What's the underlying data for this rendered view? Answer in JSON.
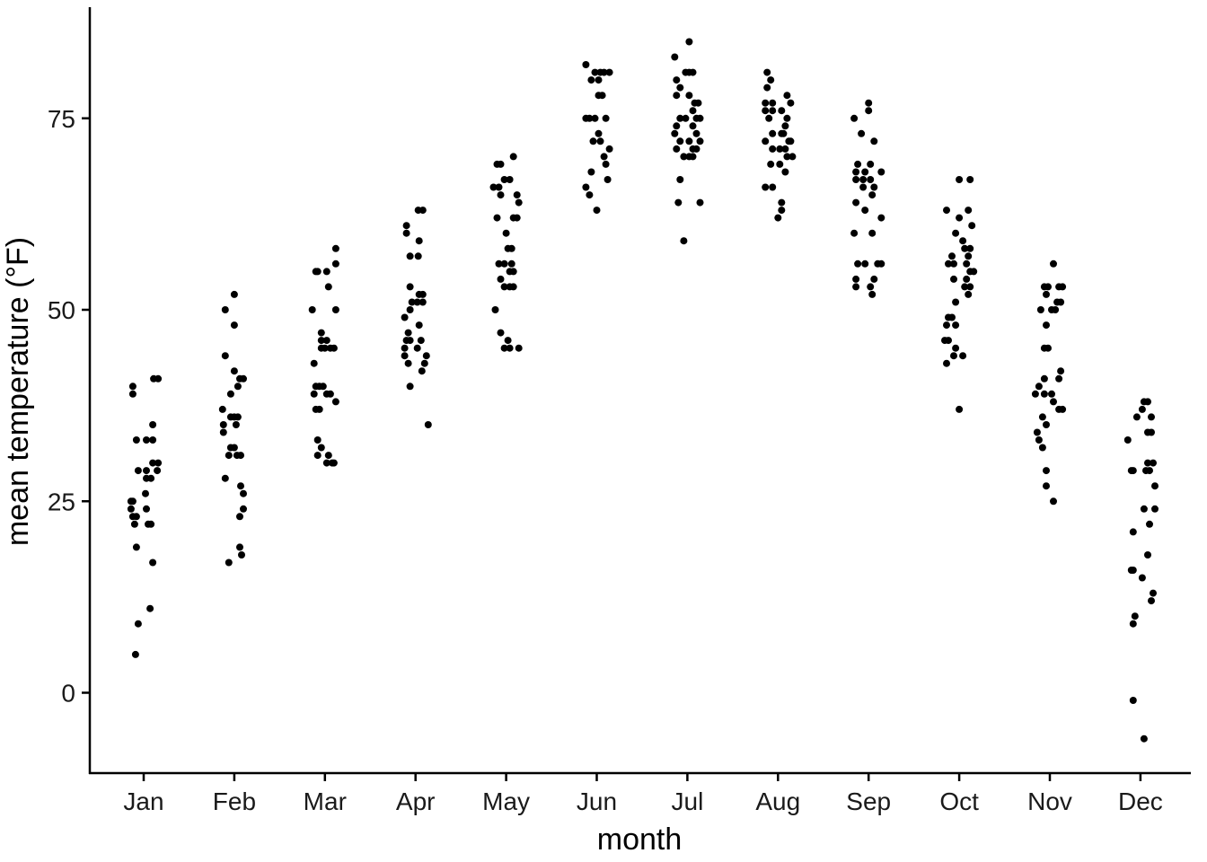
{
  "chart_data": {
    "type": "scatter",
    "title": "",
    "xlabel": "month",
    "ylabel": "mean temperature (°F)",
    "ylim": [
      -10,
      89
    ],
    "yticks": [
      0,
      25,
      50,
      75
    ],
    "categories": [
      "Jan",
      "Feb",
      "Mar",
      "Apr",
      "May",
      "Jun",
      "Jul",
      "Aug",
      "Sep",
      "Oct",
      "Nov",
      "Dec"
    ],
    "grid": false,
    "legend": "none",
    "point_color": "#000000",
    "points": {
      "Jan": [
        [
          -0.12,
          40
        ],
        [
          -0.12,
          39
        ],
        [
          0.11,
          41
        ],
        [
          0.16,
          41
        ],
        [
          -0.08,
          33
        ],
        [
          0.03,
          33
        ],
        [
          0.1,
          33
        ],
        [
          -0.06,
          29
        ],
        [
          0.03,
          29
        ],
        [
          0.15,
          29
        ],
        [
          0.1,
          30
        ],
        [
          0.16,
          30
        ],
        [
          0.03,
          28
        ],
        [
          0.08,
          28
        ],
        [
          0.1,
          35
        ],
        [
          0.02,
          26
        ],
        [
          -0.14,
          25
        ],
        [
          -0.12,
          25
        ],
        [
          -0.14,
          24
        ],
        [
          0.03,
          24
        ],
        [
          -0.12,
          23
        ],
        [
          -0.08,
          23
        ],
        [
          -0.1,
          22
        ],
        [
          0.05,
          22
        ],
        [
          0.08,
          22
        ],
        [
          -0.08,
          19
        ],
        [
          0.1,
          17
        ],
        [
          0.07,
          11
        ],
        [
          -0.06,
          9
        ],
        [
          -0.09,
          5
        ]
      ],
      "Feb": [
        [
          -0.1,
          50
        ],
        [
          0,
          52
        ],
        [
          0,
          48
        ],
        [
          -0.1,
          44
        ],
        [
          0,
          42
        ],
        [
          0.06,
          41
        ],
        [
          0.1,
          41
        ],
        [
          -0.04,
          39
        ],
        [
          0.04,
          40
        ],
        [
          -0.13,
          37
        ],
        [
          -0.04,
          36
        ],
        [
          0,
          36
        ],
        [
          0.04,
          36
        ],
        [
          -0.12,
          35
        ],
        [
          0.02,
          35
        ],
        [
          -0.12,
          34
        ],
        [
          -0.04,
          32
        ],
        [
          0,
          32
        ],
        [
          -0.06,
          31
        ],
        [
          0.03,
          31
        ],
        [
          0.07,
          31
        ],
        [
          -0.1,
          28
        ],
        [
          0.07,
          27
        ],
        [
          0.1,
          26
        ],
        [
          0.1,
          24
        ],
        [
          0.06,
          23
        ],
        [
          0.06,
          19
        ],
        [
          0.08,
          18
        ],
        [
          -0.06,
          17
        ]
      ],
      "Mar": [
        [
          -0.1,
          55
        ],
        [
          -0.08,
          55
        ],
        [
          0.02,
          55
        ],
        [
          0.12,
          58
        ],
        [
          0.12,
          56
        ],
        [
          0.04,
          53
        ],
        [
          -0.14,
          50
        ],
        [
          0.12,
          50
        ],
        [
          -0.04,
          47
        ],
        [
          -0.04,
          46
        ],
        [
          0.02,
          46
        ],
        [
          -0.04,
          45
        ],
        [
          0,
          45
        ],
        [
          0.06,
          45
        ],
        [
          0.1,
          45
        ],
        [
          -0.12,
          43
        ],
        [
          -0.1,
          40
        ],
        [
          -0.06,
          40
        ],
        [
          -0.02,
          40
        ],
        [
          -0.12,
          39
        ],
        [
          0.02,
          39
        ],
        [
          0.06,
          39
        ],
        [
          0.12,
          38
        ],
        [
          -0.1,
          37
        ],
        [
          -0.06,
          37
        ],
        [
          -0.08,
          33
        ],
        [
          -0.04,
          32
        ],
        [
          -0.08,
          31
        ],
        [
          0.04,
          31
        ],
        [
          0.02,
          30
        ],
        [
          0.08,
          30
        ],
        [
          0.1,
          30
        ]
      ],
      "Apr": [
        [
          0.03,
          63
        ],
        [
          0.08,
          63
        ],
        [
          -0.1,
          60
        ],
        [
          -0.1,
          61
        ],
        [
          0.04,
          59
        ],
        [
          -0.06,
          57
        ],
        [
          0.03,
          57
        ],
        [
          -0.06,
          53
        ],
        [
          0.04,
          52
        ],
        [
          0.08,
          52
        ],
        [
          -0.04,
          51
        ],
        [
          0.02,
          51
        ],
        [
          0.08,
          51
        ],
        [
          -0.12,
          49
        ],
        [
          -0.06,
          50
        ],
        [
          -0.08,
          47
        ],
        [
          0.04,
          48
        ],
        [
          -0.1,
          46
        ],
        [
          -0.06,
          46
        ],
        [
          0.06,
          46
        ],
        [
          -0.12,
          45
        ],
        [
          0.02,
          45
        ],
        [
          -0.12,
          44
        ],
        [
          0.12,
          44
        ],
        [
          0.1,
          43
        ],
        [
          -0.08,
          43
        ],
        [
          0.07,
          42
        ],
        [
          -0.06,
          40
        ],
        [
          0.14,
          35
        ]
      ],
      "May": [
        [
          -0.1,
          69
        ],
        [
          -0.06,
          69
        ],
        [
          0.08,
          70
        ],
        [
          -0.14,
          66
        ],
        [
          -0.08,
          66
        ],
        [
          -0.02,
          67
        ],
        [
          0.04,
          67
        ],
        [
          -0.06,
          65
        ],
        [
          0.12,
          65
        ],
        [
          0.14,
          64
        ],
        [
          0.12,
          62
        ],
        [
          0.08,
          62
        ],
        [
          -0.1,
          62
        ],
        [
          0,
          60
        ],
        [
          0.02,
          58
        ],
        [
          0.06,
          58
        ],
        [
          -0.08,
          56
        ],
        [
          -0.02,
          56
        ],
        [
          0.06,
          56
        ],
        [
          0.04,
          55
        ],
        [
          0.08,
          55
        ],
        [
          -0.06,
          54
        ],
        [
          -0.02,
          53
        ],
        [
          0.04,
          53
        ],
        [
          0.08,
          53
        ],
        [
          -0.12,
          50
        ],
        [
          -0.06,
          47
        ],
        [
          0.02,
          46
        ],
        [
          -0.02,
          45
        ],
        [
          0.04,
          45
        ],
        [
          0.14,
          45
        ]
      ],
      "Jun": [
        [
          -0.12,
          82
        ],
        [
          -0.02,
          81
        ],
        [
          0.04,
          81
        ],
        [
          0.08,
          81
        ],
        [
          0.14,
          81
        ],
        [
          -0.06,
          80
        ],
        [
          0.02,
          80
        ],
        [
          0.02,
          78
        ],
        [
          0.06,
          78
        ],
        [
          -0.12,
          75
        ],
        [
          -0.08,
          75
        ],
        [
          -0.02,
          75
        ],
        [
          0.1,
          75
        ],
        [
          0.02,
          73
        ],
        [
          -0.04,
          72
        ],
        [
          0.04,
          72
        ],
        [
          0.14,
          71
        ],
        [
          0.08,
          70
        ],
        [
          0.1,
          69
        ],
        [
          -0.06,
          68
        ],
        [
          0.12,
          67
        ],
        [
          -0.12,
          66
        ],
        [
          -0.08,
          65
        ],
        [
          0,
          63
        ]
      ],
      "Jul": [
        [
          0.02,
          85
        ],
        [
          -0.14,
          83
        ],
        [
          -0.02,
          81
        ],
        [
          0.02,
          81
        ],
        [
          0.06,
          81
        ],
        [
          -0.12,
          80
        ],
        [
          -0.08,
          79
        ],
        [
          -0.12,
          78
        ],
        [
          0.02,
          78
        ],
        [
          0.08,
          77
        ],
        [
          0.12,
          77
        ],
        [
          0.06,
          76
        ],
        [
          -0.08,
          75
        ],
        [
          -0.02,
          75
        ],
        [
          0.1,
          75
        ],
        [
          0.14,
          75
        ],
        [
          -0.12,
          74
        ],
        [
          0.06,
          74
        ],
        [
          -0.14,
          73
        ],
        [
          0.1,
          73
        ],
        [
          -0.08,
          72
        ],
        [
          0.02,
          72
        ],
        [
          0.14,
          72
        ],
        [
          -0.12,
          71
        ],
        [
          0.06,
          71
        ],
        [
          0.1,
          71
        ],
        [
          -0.04,
          70
        ],
        [
          0.02,
          70
        ],
        [
          0.06,
          70
        ],
        [
          -0.08,
          67
        ],
        [
          -0.1,
          64
        ],
        [
          0.14,
          64
        ],
        [
          -0.04,
          59
        ]
      ],
      "Aug": [
        [
          -0.12,
          81
        ],
        [
          -0.08,
          80
        ],
        [
          -0.12,
          79
        ],
        [
          0.1,
          78
        ],
        [
          -0.14,
          77
        ],
        [
          -0.06,
          77
        ],
        [
          0.14,
          77
        ],
        [
          -0.14,
          76
        ],
        [
          -0.06,
          76
        ],
        [
          0.04,
          76
        ],
        [
          -0.1,
          75
        ],
        [
          0.1,
          75
        ],
        [
          0.08,
          74
        ],
        [
          -0.06,
          73
        ],
        [
          0.04,
          73
        ],
        [
          0.06,
          73
        ],
        [
          -0.14,
          72
        ],
        [
          0.12,
          72
        ],
        [
          0.14,
          72
        ],
        [
          -0.06,
          71
        ],
        [
          0.02,
          71
        ],
        [
          0.08,
          71
        ],
        [
          0.1,
          70
        ],
        [
          0.16,
          70
        ],
        [
          -0.08,
          69
        ],
        [
          0.02,
          69
        ],
        [
          0.08,
          68
        ],
        [
          -0.14,
          66
        ],
        [
          -0.06,
          66
        ],
        [
          0.04,
          64
        ],
        [
          0.04,
          63
        ],
        [
          0,
          62
        ]
      ],
      "Sep": [
        [
          -0.16,
          75
        ],
        [
          0,
          77
        ],
        [
          0,
          76
        ],
        [
          -0.08,
          73
        ],
        [
          0.06,
          72
        ],
        [
          -0.12,
          69
        ],
        [
          0.02,
          69
        ],
        [
          -0.14,
          68
        ],
        [
          -0.04,
          68
        ],
        [
          0.14,
          68
        ],
        [
          -0.14,
          67
        ],
        [
          -0.06,
          67
        ],
        [
          0.02,
          67
        ],
        [
          -0.06,
          66
        ],
        [
          0.06,
          66
        ],
        [
          0.04,
          65
        ],
        [
          -0.14,
          64
        ],
        [
          -0.04,
          63
        ],
        [
          0.14,
          62
        ],
        [
          -0.16,
          60
        ],
        [
          0.04,
          60
        ],
        [
          -0.12,
          56
        ],
        [
          -0.04,
          56
        ],
        [
          0.1,
          56
        ],
        [
          0.14,
          56
        ],
        [
          -0.14,
          54
        ],
        [
          0.06,
          54
        ],
        [
          -0.14,
          53
        ],
        [
          0.02,
          53
        ],
        [
          0.04,
          52
        ]
      ],
      "Oct": [
        [
          0,
          67
        ],
        [
          0.12,
          67
        ],
        [
          -0.14,
          63
        ],
        [
          0,
          62
        ],
        [
          0.1,
          63
        ],
        [
          0.14,
          61
        ],
        [
          -0.04,
          60
        ],
        [
          0.04,
          59
        ],
        [
          0.06,
          58
        ],
        [
          0.12,
          58
        ],
        [
          -0.08,
          57
        ],
        [
          0.1,
          57
        ],
        [
          -0.12,
          56
        ],
        [
          -0.06,
          56
        ],
        [
          0.08,
          56
        ],
        [
          0.12,
          55
        ],
        [
          0.16,
          55
        ],
        [
          -0.06,
          54
        ],
        [
          0.06,
          53
        ],
        [
          0.08,
          54
        ],
        [
          0.12,
          53
        ],
        [
          0.1,
          52
        ],
        [
          -0.04,
          51
        ],
        [
          -0.12,
          49
        ],
        [
          -0.08,
          49
        ],
        [
          -0.14,
          48
        ],
        [
          -0.04,
          48
        ],
        [
          -0.12,
          46
        ],
        [
          -0.16,
          46
        ],
        [
          -0.04,
          45
        ],
        [
          -0.06,
          44
        ],
        [
          0.04,
          44
        ],
        [
          -0.14,
          43
        ],
        [
          0,
          37
        ]
      ],
      "Nov": [
        [
          0.04,
          56
        ],
        [
          -0.06,
          53
        ],
        [
          -0.02,
          53
        ],
        [
          0.1,
          53
        ],
        [
          0.14,
          53
        ],
        [
          -0.04,
          52
        ],
        [
          0.08,
          51
        ],
        [
          0.12,
          51
        ],
        [
          -0.1,
          50
        ],
        [
          0.02,
          50
        ],
        [
          0.06,
          50
        ],
        [
          -0.04,
          48
        ],
        [
          -0.06,
          45
        ],
        [
          -0.02,
          45
        ],
        [
          0.12,
          42
        ],
        [
          -0.06,
          41
        ],
        [
          0.1,
          41
        ],
        [
          -0.12,
          40
        ],
        [
          -0.16,
          39
        ],
        [
          -0.06,
          39
        ],
        [
          0.02,
          39
        ],
        [
          0.04,
          38
        ],
        [
          0.1,
          37
        ],
        [
          0.14,
          37
        ],
        [
          -0.08,
          36
        ],
        [
          -0.04,
          35
        ],
        [
          -0.14,
          34
        ],
        [
          -0.12,
          33
        ],
        [
          -0.08,
          32
        ],
        [
          -0.04,
          29
        ],
        [
          -0.04,
          27
        ],
        [
          0.04,
          25
        ]
      ],
      "Dec": [
        [
          0.04,
          38
        ],
        [
          0.08,
          38
        ],
        [
          0.02,
          37
        ],
        [
          -0.04,
          36
        ],
        [
          0.12,
          36
        ],
        [
          0.08,
          34
        ],
        [
          0.12,
          34
        ],
        [
          -0.14,
          33
        ],
        [
          -0.1,
          29
        ],
        [
          -0.08,
          29
        ],
        [
          0.06,
          29
        ],
        [
          0.1,
          29
        ],
        [
          0.14,
          30
        ],
        [
          0.08,
          30
        ],
        [
          0.16,
          27
        ],
        [
          0.16,
          24
        ],
        [
          0.04,
          24
        ],
        [
          0.1,
          22
        ],
        [
          -0.08,
          21
        ],
        [
          0.08,
          18
        ],
        [
          -0.1,
          16
        ],
        [
          -0.08,
          16
        ],
        [
          0.02,
          15
        ],
        [
          0.14,
          13
        ],
        [
          0.12,
          12
        ],
        [
          -0.06,
          10
        ],
        [
          -0.08,
          9
        ],
        [
          -0.08,
          -1
        ],
        [
          0.04,
          -6
        ]
      ]
    }
  }
}
